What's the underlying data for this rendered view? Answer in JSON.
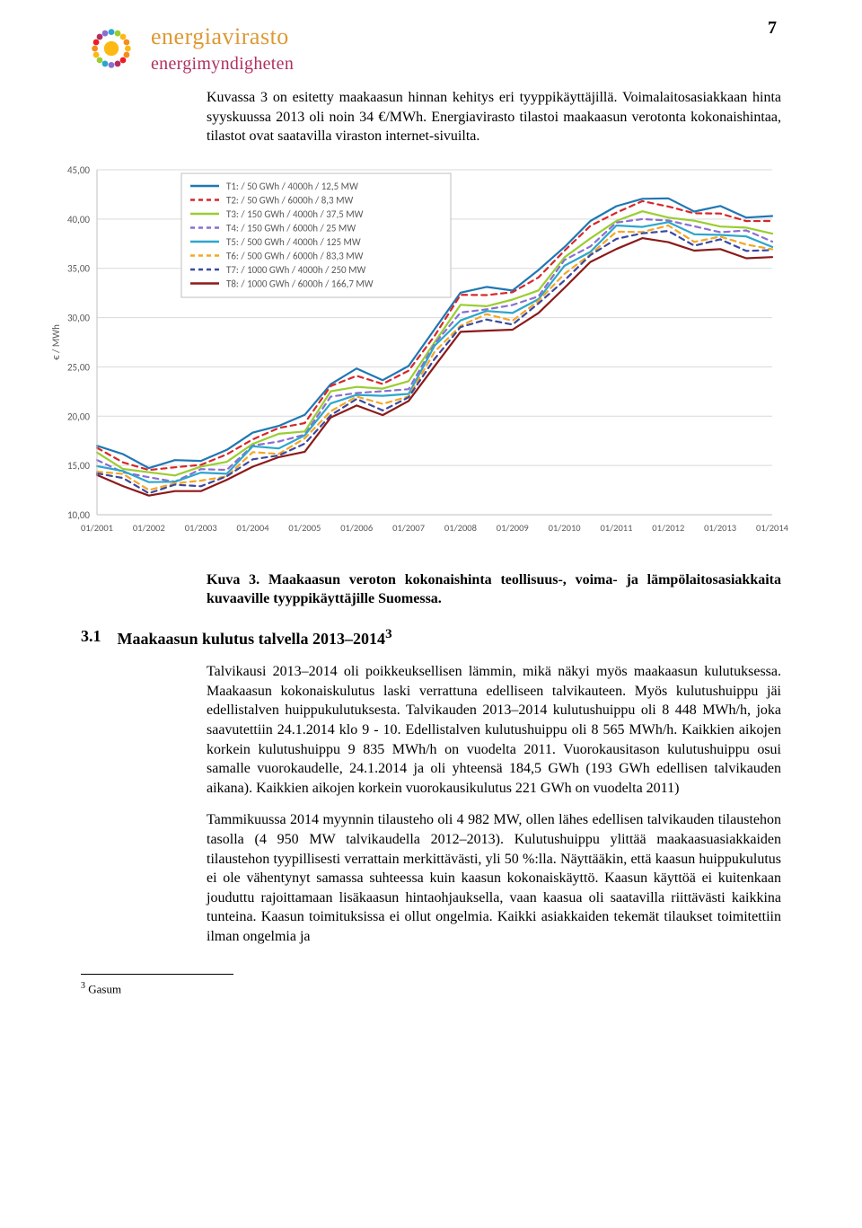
{
  "page_number": "7",
  "logo": {
    "line1": "energiavirasto",
    "line2": "energimyndigheten"
  },
  "intro": "Kuvassa 3 on esitetty maakaasun hinnan kehitys eri tyyppikäyttäjillä. Voimalaitosasiakkaan hinta syyskuussa 2013 oli noin 34 €/MWh. Energiavirasto tilastoi maakaasun verotonta kokonaishintaa, tilastot ovat saatavilla viraston internet-sivuilta.",
  "chart": {
    "type": "line",
    "ylabel": "€ / MWh",
    "label_fontsize": 11,
    "ylim": [
      10,
      45
    ],
    "ytick_step": 5,
    "xlabels": [
      "01/2001",
      "01/2002",
      "01/2003",
      "01/2004",
      "01/2005",
      "01/2006",
      "01/2007",
      "01/2008",
      "01/2009",
      "01/2010",
      "01/2011",
      "01/2012",
      "01/2013",
      "01/2014"
    ],
    "background_color": "#ffffff",
    "grid_color": "#d9d9d9",
    "line_width": 2.2,
    "series": [
      {
        "label": "T1: / 50 GWh / 4000h  / 12,5 MW",
        "color": "#1f77b4",
        "dash": "none",
        "values": [
          17.0,
          16.0,
          15.0,
          15.2,
          15.8,
          16.3,
          18.5,
          19.0,
          20.0,
          23.5,
          24.5,
          24.0,
          24.8,
          29.0,
          32.5,
          33.0,
          33.0,
          34.5,
          37.5,
          39.5,
          41.5,
          42.0,
          42.0,
          41.0,
          41.0,
          40.5,
          40.0
        ]
      },
      {
        "label": "T2: / 50 GWh / 6000h  / 8,3 MW",
        "color": "#d62728",
        "dash": "4,4",
        "values": [
          16.5,
          15.5,
          14.5,
          14.7,
          15.3,
          15.8,
          18.0,
          18.5,
          19.5,
          23.0,
          24.0,
          23.5,
          24.3,
          28.5,
          32.0,
          32.5,
          32.5,
          34.0,
          37.0,
          39.0,
          41.0,
          41.5,
          41.5,
          40.5,
          40.5,
          40.0,
          39.5
        ]
      },
      {
        "label": "T3: / 150 GWh / 4000h  / 37,5 MW",
        "color": "#9acd32",
        "dash": "none",
        "values": [
          16.0,
          15.0,
          14.0,
          14.2,
          14.8,
          15.3,
          17.4,
          17.9,
          18.8,
          22.2,
          23.2,
          22.7,
          23.5,
          27.7,
          31.0,
          31.5,
          31.5,
          33.0,
          36.0,
          38.0,
          40.0,
          40.5,
          40.5,
          39.5,
          39.5,
          39.0,
          38.5
        ]
      },
      {
        "label": "T4: / 150 GWh / 6000h  / 25 MW",
        "color": "#8a6fd1",
        "dash": "4,4",
        "values": [
          15.5,
          14.5,
          13.5,
          13.7,
          14.3,
          14.8,
          16.9,
          17.4,
          18.3,
          21.7,
          22.7,
          22.2,
          23.0,
          27.2,
          30.5,
          31.0,
          31.0,
          32.5,
          35.5,
          37.5,
          39.5,
          40.0,
          40.0,
          39.0,
          39.0,
          38.5,
          38.0
        ]
      },
      {
        "label": "T5: / 500 GWh / 4000h  / 125 MW",
        "color": "#2ca6cb",
        "dash": "none",
        "values": [
          15.2,
          14.3,
          13.3,
          13.5,
          14.0,
          14.5,
          16.6,
          17.0,
          17.9,
          21.3,
          22.3,
          21.8,
          22.6,
          26.8,
          30.0,
          30.5,
          30.5,
          32.0,
          35.0,
          37.0,
          39.0,
          39.5,
          39.5,
          38.5,
          38.5,
          38.0,
          37.5
        ]
      },
      {
        "label": "T6: / 500 GWh / 6000h  / 83,3 MW",
        "color": "#f5a623",
        "dash": "4,4",
        "values": [
          14.7,
          13.8,
          12.8,
          13.0,
          13.5,
          14.0,
          16.1,
          16.5,
          17.4,
          20.8,
          21.8,
          21.3,
          22.1,
          26.3,
          29.5,
          30.0,
          30.0,
          31.5,
          34.5,
          36.5,
          38.5,
          39.0,
          39.0,
          38.0,
          38.0,
          37.5,
          37.0
        ]
      },
      {
        "label": "T7: / 1000 GWh / 4000h  / 250 MW",
        "color": "#3a4a9f",
        "dash": "4,4",
        "values": [
          14.3,
          13.5,
          12.5,
          12.7,
          13.2,
          13.7,
          15.7,
          16.1,
          17.0,
          20.4,
          21.4,
          20.9,
          21.7,
          25.9,
          29.1,
          29.6,
          29.6,
          31.1,
          34.1,
          36.1,
          38.1,
          38.6,
          38.6,
          37.6,
          37.6,
          37.1,
          36.6
        ]
      },
      {
        "label": "T8: / 1000 GWh / 6000h  / 166,7 MW",
        "color": "#8b1a1a",
        "dash": "none",
        "values": [
          13.8,
          13.0,
          12.0,
          12.2,
          12.7,
          13.2,
          15.2,
          15.6,
          16.5,
          19.9,
          20.9,
          20.4,
          21.2,
          25.4,
          28.3,
          28.8,
          28.8,
          30.3,
          33.3,
          35.3,
          37.3,
          37.8,
          37.8,
          36.8,
          36.8,
          36.3,
          35.8
        ]
      }
    ]
  },
  "figure_caption": "Kuva 3. Maakaasun veroton kokonaishinta teollisuus-, voima- ja lämpölaitosasiakkaita kuvaaville tyyppikäyttäjille Suomessa.",
  "section": {
    "num": "3.1",
    "title": "Maakaasun kulutus talvella 2013–2014",
    "fn": "3"
  },
  "para1": "Talvikausi 2013–2014 oli poikkeuksellisen lämmin, mikä näkyi myös maakaasun kulutuksessa. Maakaasun kokonaiskulutus laski verrattuna edelliseen talvikauteen. Myös kulutushuippu jäi edellistalven huippukulutuksesta. Talvikauden 2013–2014 kulutushuippu oli 8 448 MWh/h, joka saavutettiin 24.1.2014 klo 9 - 10. Edellistalven kulutushuippu oli 8 565 MWh/h. Kaikkien aikojen korkein kulutushuippu 9 835 MWh/h on vuodelta 2011. Vuorokausitason kulutushuippu osui samalle vuorokaudelle, 24.1.2014 ja oli yhteensä 184,5 GWh (193 GWh edellisen talvikauden aikana). Kaikkien aikojen korkein vuorokausikulutus 221 GWh on vuodelta 2011)",
  "para2": "Tammikuussa 2014 myynnin tilausteho oli 4 982 MW, ollen lähes edellisen talvikauden tilaustehon tasolla (4 950 MW talvikaudella 2012–2013). Kulutushuippu ylittää maakaasuasiakkaiden tilaustehon tyypillisesti verrattain merkittävästi, yli 50 %:lla. Näyttääkin, että kaasun huippukulutus ei ole vähentynyt samassa suhteessa kuin kaasun kokonaiskäyttö. Kaasun käyttöä ei kuitenkaan jouduttu rajoittamaan lisäkaasun hintaohjauksella, vaan kaasua oli saatavilla riittävästi kaikkina tunteina. Kaasun toimituksissa ei ollut ongelmia. Kaikki asiakkaiden tekemät tilaukset toimitettiin ilman ongelmia ja",
  "footnote": {
    "num": "3",
    "text": "Gasum"
  }
}
